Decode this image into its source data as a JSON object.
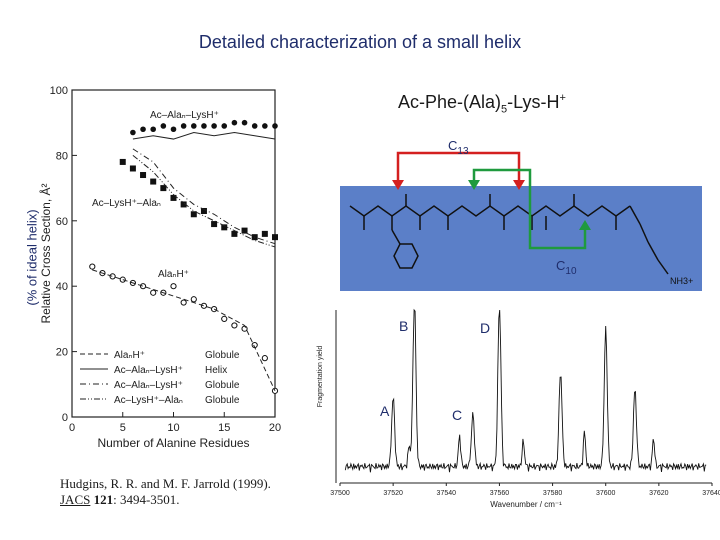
{
  "slide": {
    "title": "Detailed characterization of a small helix",
    "formula": {
      "pre": "Ac-Phe-(Ala)",
      "sub": "5",
      "post": "-Lys-H",
      "sup": "+"
    },
    "y_axis_outer": "(% of ideal helix)",
    "bracket_labels": {
      "c13": "C",
      "c13_sub": "13",
      "c10": "C",
      "c10_sub": "10"
    },
    "peak_labels": {
      "a": "A",
      "b": "B",
      "c": "C",
      "d": "D"
    },
    "citation": {
      "line1": "Hudgins, R. R. and M. F. Jarrold (1999).",
      "journal": "JACS",
      "volume": "121",
      "pages": ": 3494-3501."
    }
  },
  "chart_data": [
    {
      "type": "scatter",
      "title": "",
      "xlabel": "Number of Alanine Residues",
      "ylabel": "Relative Cross Section, Å²",
      "xlim": [
        0,
        20
      ],
      "ylim": [
        0,
        100
      ],
      "xticks": [
        "0",
        "5",
        "10",
        "15",
        "20"
      ],
      "yticks": [
        "0",
        "20",
        "40",
        "60",
        "80",
        "100"
      ],
      "annotations": [
        "Ac–Alaₙ–LysH⁺",
        "Ac–LysH⁺–Alaₙ",
        "AlaₙH⁺"
      ],
      "legend": [
        {
          "label": "AlaₙH⁺",
          "type": "Globule",
          "style": "dashed"
        },
        {
          "label": "Ac–Alaₙ–LysH⁺",
          "type": "Helix",
          "style": "solid"
        },
        {
          "label": "Ac–Alaₙ–LysH⁺",
          "type": "Globule",
          "style": "dashdot"
        },
        {
          "label": "Ac–LysH⁺–Alaₙ",
          "type": "Globule",
          "style": "dashdotdot"
        }
      ],
      "series": [
        {
          "name": "Ac-Ala_n-LysH+ (filled circles)",
          "marker": "filled-circle",
          "x": [
            6,
            7,
            8,
            9,
            10,
            11,
            12,
            13,
            14,
            15,
            16,
            17,
            18,
            19,
            20
          ],
          "y": [
            87,
            88,
            88,
            89,
            88,
            89,
            89,
            89,
            89,
            89,
            90,
            90,
            89,
            89,
            89
          ]
        },
        {
          "name": "Ac-LysH+-Ala_n (filled squares)",
          "marker": "filled-square",
          "x": [
            5,
            6,
            7,
            8,
            9,
            10,
            11,
            12,
            13,
            14,
            15,
            16,
            17,
            18,
            19,
            20
          ],
          "y": [
            78,
            76,
            74,
            72,
            70,
            67,
            65,
            62,
            63,
            59,
            58,
            56,
            57,
            55,
            56,
            55
          ]
        },
        {
          "name": "Ala_nH+ (open circles)",
          "marker": "open-circle",
          "x": [
            2,
            3,
            4,
            5,
            6,
            7,
            8,
            9,
            10,
            11,
            12,
            13,
            14,
            15,
            16,
            17,
            18,
            19,
            20
          ],
          "y": [
            46,
            44,
            43,
            42,
            41,
            40,
            38,
            38,
            40,
            35,
            36,
            34,
            33,
            30,
            28,
            27,
            22,
            18,
            8
          ]
        },
        {
          "name": "Ac-Ala_n-LysH+ Helix line",
          "marker": "none",
          "style": "solid",
          "x": [
            6,
            8,
            10,
            12,
            14,
            16,
            18,
            20
          ],
          "y": [
            85,
            86,
            85,
            87,
            86,
            87,
            86,
            85
          ]
        },
        {
          "name": "Ac-Ala_n-LysH+ Globule line",
          "marker": "none",
          "style": "dashdot",
          "x": [
            6,
            8,
            10,
            12,
            14,
            16,
            18,
            20
          ],
          "y": [
            82,
            78,
            70,
            65,
            62,
            58,
            55,
            53
          ]
        },
        {
          "name": "Ac-LysH+-Ala_n Globule line",
          "marker": "none",
          "style": "dashdotdot",
          "x": [
            6,
            8,
            10,
            12,
            14,
            16,
            18,
            20
          ],
          "y": [
            80,
            75,
            68,
            63,
            60,
            57,
            54,
            52
          ]
        },
        {
          "name": "Ala_nH+ Globule line",
          "marker": "none",
          "style": "dashed",
          "x": [
            2,
            5,
            8,
            11,
            14,
            17,
            20
          ],
          "y": [
            45,
            42,
            39,
            36,
            33,
            28,
            8
          ]
        }
      ]
    },
    {
      "type": "line",
      "title": "",
      "xlabel": "Wavenumber / cm⁻¹",
      "ylabel": "Fragmentation yield",
      "xlim": [
        37500,
        37640
      ],
      "xticks": [
        "37500",
        "37520",
        "37540",
        "37560",
        "37580",
        "37600",
        "37620",
        "37640"
      ],
      "peaks": [
        {
          "x": 37528,
          "y": 0.98,
          "label": "B"
        },
        {
          "x": 37560,
          "y": 0.95,
          "label": "D"
        },
        {
          "x": 37520,
          "y": 0.4,
          "label": "A"
        },
        {
          "x": 37550,
          "y": 0.3,
          "label": "C"
        },
        {
          "x": 37583,
          "y": 0.55
        },
        {
          "x": 37600,
          "y": 0.8
        },
        {
          "x": 37611,
          "y": 0.45
        }
      ]
    }
  ]
}
